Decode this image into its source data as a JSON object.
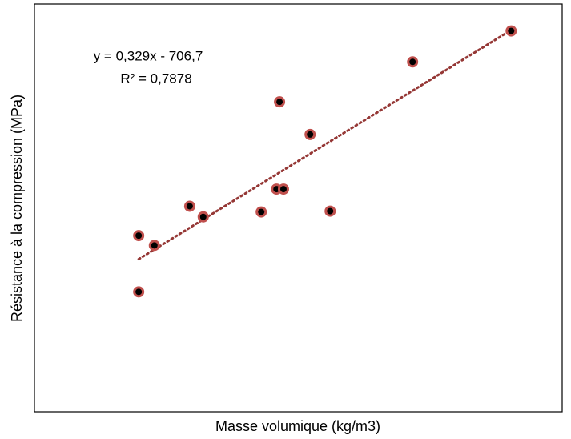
{
  "chart_data": {
    "type": "scatter",
    "x_label": "Masse volumique (kg/m3)",
    "y_label": "Résistance à la compression (MPa)",
    "x": [
      2204.9,
      2204.9,
      2208.5,
      2216.6,
      2219.7,
      2233.0,
      2236.5,
      2238.1,
      2237.2,
      2244.2,
      2248.8,
      2267.7,
      2290.3
    ],
    "values": [
      21.6,
      14.7,
      20.4,
      25.2,
      23.9,
      24.5,
      27.3,
      27.3,
      38.0,
      34.0,
      24.6,
      42.9,
      46.7
    ],
    "color": "#c0504d",
    "xlim": [
      2181,
      2302
    ],
    "ylim": [
      0,
      50
    ],
    "trendline": {
      "equation": "y = 0,329x - 706,7",
      "r2_label": "R² = 0,7878",
      "slope": 0.329,
      "intercept": -706.7,
      "color": "#953735"
    }
  }
}
